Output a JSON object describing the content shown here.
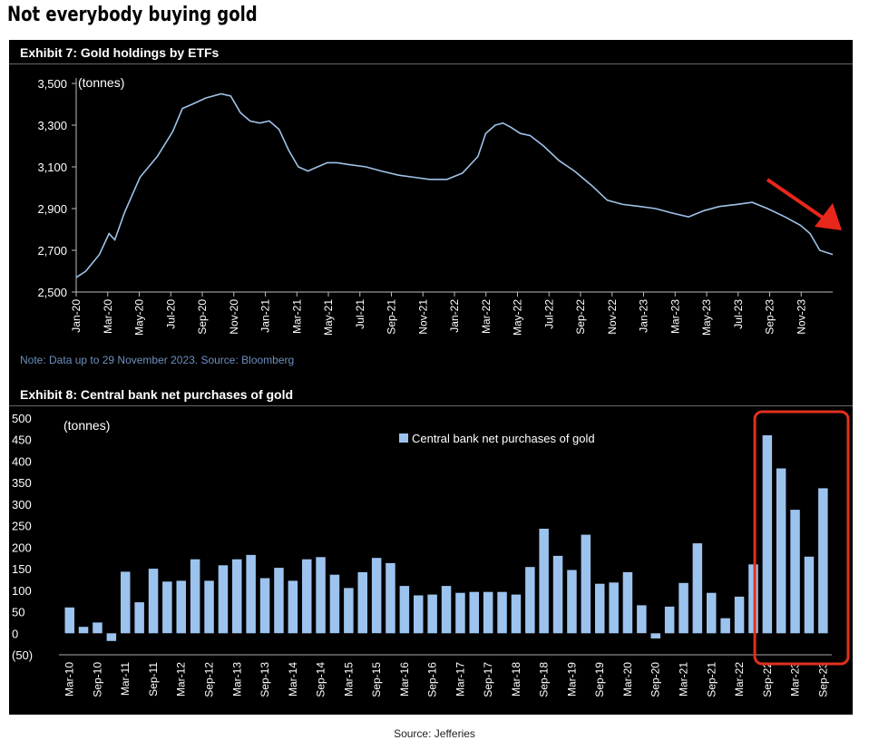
{
  "page_title": "Not everybody buying gold",
  "source": "Source: Jefferies",
  "colors": {
    "line": "#9fc3e8",
    "bar": "#9cc3ee",
    "highlight": "#e0301e",
    "arrow": "#e8271a"
  },
  "chart_data": [
    {
      "type": "line",
      "title": "Exhibit 7: Gold holdings by ETFs",
      "unit_label": "(tonnes)",
      "note": "Note: Data up to 29 November 2023. Source: Bloomberg",
      "ylim": [
        2500,
        3500
      ],
      "yticks": [
        2500,
        2700,
        2900,
        3100,
        3300,
        3500
      ],
      "ytick_labels": [
        "2,500",
        "2,700",
        "2,900",
        "3,100",
        "3,300",
        "3,500"
      ],
      "xrange": [
        2020.0,
        2023.917
      ],
      "xtick_labels": [
        "Jan-20",
        "Mar-20",
        "May-20",
        "Jul-20",
        "Sep-20",
        "Nov-20",
        "Jan-21",
        "Mar-21",
        "May-21",
        "Jul-21",
        "Sep-21",
        "Nov-21",
        "Jan-22",
        "Mar-22",
        "May-22",
        "Jul-22",
        "Sep-22",
        "Nov-22",
        "Jan-23",
        "Mar-23",
        "May-23",
        "Jul-23",
        "Sep-23",
        "Nov-23"
      ],
      "x": [
        2020.0,
        2020.05,
        2020.12,
        2020.17,
        2020.2,
        2020.25,
        2020.33,
        2020.42,
        2020.5,
        2020.55,
        2020.6,
        2020.67,
        2020.75,
        2020.8,
        2020.85,
        2020.9,
        2020.95,
        2021.0,
        2021.05,
        2021.1,
        2021.15,
        2021.2,
        2021.25,
        2021.3,
        2021.35,
        2021.42,
        2021.5,
        2021.58,
        2021.67,
        2021.75,
        2021.83,
        2021.92,
        2022.0,
        2022.08,
        2022.12,
        2022.17,
        2022.21,
        2022.25,
        2022.3,
        2022.35,
        2022.42,
        2022.5,
        2022.58,
        2022.67,
        2022.75,
        2022.83,
        2022.92,
        2023.0,
        2023.08,
        2023.17,
        2023.25,
        2023.33,
        2023.42,
        2023.5,
        2023.58,
        2023.67,
        2023.75,
        2023.8,
        2023.85,
        2023.917
      ],
      "y": [
        2570,
        2600,
        2680,
        2780,
        2750,
        2880,
        3050,
        3150,
        3270,
        3380,
        3400,
        3430,
        3450,
        3440,
        3360,
        3320,
        3310,
        3320,
        3280,
        3180,
        3100,
        3080,
        3100,
        3120,
        3120,
        3110,
        3100,
        3080,
        3060,
        3050,
        3040,
        3040,
        3070,
        3150,
        3260,
        3300,
        3310,
        3290,
        3260,
        3250,
        3200,
        3130,
        3080,
        3010,
        2940,
        2920,
        2910,
        2900,
        2880,
        2860,
        2890,
        2910,
        2920,
        2930,
        2900,
        2860,
        2820,
        2780,
        2700,
        2680
      ],
      "annotation": "red arrow pointing down-right"
    },
    {
      "type": "bar",
      "title": "Exhibit 8: Central bank net purchases of gold",
      "unit_label": "(tonnes)",
      "legend": "Central bank net purchases of gold",
      "legend_position": "top-center",
      "ylim": [
        -50,
        500
      ],
      "yticks": [
        -50,
        0,
        50,
        100,
        150,
        200,
        250,
        300,
        350,
        400,
        450,
        500
      ],
      "ytick_labels": [
        "(50)",
        "0",
        "50",
        "100",
        "150",
        "200",
        "250",
        "300",
        "350",
        "400",
        "450",
        "500"
      ],
      "categories": [
        "Mar-10",
        "Jun-10",
        "Sep-10",
        "Dec-10",
        "Mar-11",
        "Jun-11",
        "Sep-11",
        "Dec-11",
        "Mar-12",
        "Jun-12",
        "Sep-12",
        "Dec-12",
        "Mar-13",
        "Jun-13",
        "Sep-13",
        "Dec-13",
        "Mar-14",
        "Jun-14",
        "Sep-14",
        "Dec-14",
        "Mar-15",
        "Jun-15",
        "Sep-15",
        "Dec-15",
        "Mar-16",
        "Jun-16",
        "Sep-16",
        "Dec-16",
        "Mar-17",
        "Jun-17",
        "Sep-17",
        "Dec-17",
        "Mar-18",
        "Jun-18",
        "Sep-18",
        "Dec-18",
        "Mar-19",
        "Jun-19",
        "Sep-19",
        "Dec-19",
        "Mar-20",
        "Jun-20",
        "Sep-20",
        "Dec-20",
        "Mar-21",
        "Jun-21",
        "Sep-21",
        "Dec-21",
        "Mar-22",
        "Jun-22",
        "Sep-22",
        "Dec-22",
        "Mar-23",
        "Jun-23",
        "Sep-23"
      ],
      "xtick_labels": [
        "Mar-10",
        "Sep-10",
        "Mar-11",
        "Sep-11",
        "Mar-12",
        "Sep-12",
        "Mar-13",
        "Sep-13",
        "Mar-14",
        "Sep-14",
        "Mar-15",
        "Sep-15",
        "Mar-16",
        "Sep-16",
        "Mar-17",
        "Sep-17",
        "Mar-18",
        "Sep-18",
        "Mar-19",
        "Sep-19",
        "Mar-20",
        "Sep-20",
        "Mar-21",
        "Sep-21",
        "Mar-22",
        "Sep-22",
        "Mar-23",
        "Sep-23"
      ],
      "values": [
        60,
        15,
        25,
        -18,
        143,
        72,
        150,
        120,
        122,
        172,
        122,
        158,
        172,
        182,
        128,
        152,
        122,
        172,
        177,
        136,
        105,
        142,
        175,
        163,
        110,
        88,
        90,
        110,
        94,
        96,
        96,
        96,
        90,
        154,
        243,
        180,
        147,
        229,
        115,
        118,
        142,
        65,
        -12,
        62,
        117,
        209,
        94,
        35,
        85,
        160,
        460,
        383,
        287,
        178,
        337
      ],
      "highlight_range": [
        "Sep-22",
        "Sep-23"
      ]
    }
  ]
}
